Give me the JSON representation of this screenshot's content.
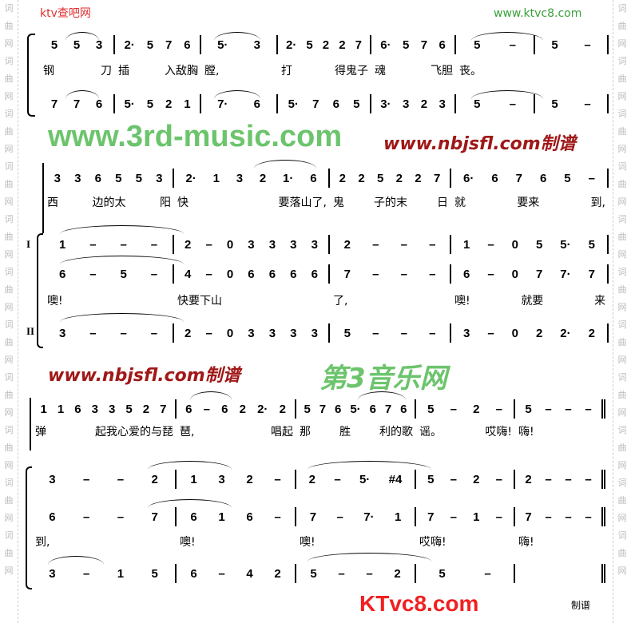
{
  "side_watermark": [
    "词",
    "曲",
    "网",
    "词",
    "曲",
    "网",
    "词",
    "曲",
    "网",
    "词",
    "曲",
    "网",
    "词",
    "曲",
    "网",
    "词",
    "曲",
    "网",
    "词",
    "曲",
    "网",
    "词",
    "曲",
    "网",
    "词",
    "曲",
    "网",
    "词",
    "曲",
    "网",
    "词",
    "曲",
    "网"
  ],
  "system1": {
    "top": [
      "5 5 3",
      "2· 5 7 6",
      "5· 3",
      "2· 5 2 2 7",
      "6· 5 7 6",
      "5 –",
      "5 –"
    ],
    "lyrics": [
      "钢 刀",
      "插 入敌胸",
      "膛,",
      "打 得鬼子",
      "魂 飞胆",
      "丧。",
      ""
    ],
    "bottom": [
      "7 7 6",
      "5· 5 2 1",
      "7· 6",
      "5· 7 6 5",
      "3· 3 2 3",
      "5 –",
      "5 –"
    ]
  },
  "system2": {
    "melody": [
      "3 3 6 5 5 3",
      "2· 1 3 2 1· 6",
      "2 2 5 2 2 7",
      "6· 6 7 6 5 –"
    ],
    "melody_lyrics": [
      "西 边的太 阳",
      "快 要落山了,",
      "鬼 子的末 日",
      "就 要来 到,"
    ],
    "part1_label": "I",
    "part1_upper": [
      "1 – – –",
      "2 – 0 3 3 3 3",
      "2 – – –",
      "1 – 0 5 5· 5"
    ],
    "part1_lower": [
      "6 – 5 –",
      "4 – 0 6 6 6 6",
      "7 – – –",
      "6 – 0 7 7· 7"
    ],
    "part1_lyrics": [
      "噢!",
      "快要下山",
      "了,",
      "噢!  就要 来"
    ],
    "part2_label": "II",
    "part2": [
      "3 – – –",
      "2 – 0 3 3 3 3",
      "5 – – –",
      "3 – 0 2 2· 2"
    ]
  },
  "system3": {
    "melody": [
      "1 1 6 3 3 5 2 7",
      "6 – 6 2 2· 2",
      "5 7 6 5· 6 7 6",
      "5 – 2 –",
      "5 – – –"
    ],
    "melody_lyrics": [
      "弹 起我心爱的与琵",
      "琶,  唱起",
      "那 胜 利的歌",
      "谣。 哎嗨!",
      "嗨!"
    ],
    "part1_upper": [
      "3 – – 2",
      "1 3 2 –",
      "2 – 5· #4",
      "5 – 2 –",
      "2 – – –"
    ],
    "part1_lower": [
      "6 – – 7",
      "6 1 6 –",
      "7 – 7· 1",
      "7 – 1 –",
      "7 – – –"
    ],
    "part1_lyrics": [
      "到,",
      "噢!",
      "噢!",
      "哎嗨!",
      "嗨!"
    ],
    "part2": [
      "3 – 1 5",
      "6 – 4 2",
      "5 – – 2",
      "5 –",
      ""
    ]
  },
  "watermarks": {
    "ktv_top_left": "ktv查吧网",
    "ktvc8_top_right": "www.ktvc8.com",
    "nbjsfl_1": "www.nbjsfl.com制谱",
    "nbjsfl_2": "www.nbjsfl.com制谱",
    "third_music": "www.3rd-music.com",
    "third_music_cn": "第3音乐网",
    "ktvc8_logo": "KTvc8.com",
    "credit": "制谱"
  }
}
